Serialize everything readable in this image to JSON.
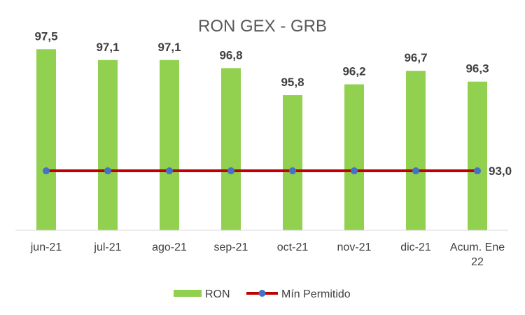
{
  "chart_data": {
    "type": "bar",
    "title": "RON GEX - GRB",
    "categories": [
      "jun-21",
      "jul-21",
      "ago-21",
      "sep-21",
      "oct-21",
      "nov-21",
      "dic-21",
      "Acum. Ene 22"
    ],
    "category_lines": [
      [
        "jun-21"
      ],
      [
        "jul-21"
      ],
      [
        "ago-21"
      ],
      [
        "sep-21"
      ],
      [
        "oct-21"
      ],
      [
        "nov-21"
      ],
      [
        "dic-21"
      ],
      [
        "Acum. Ene",
        "22"
      ]
    ],
    "series": [
      {
        "name": "RON",
        "kind": "bar",
        "color": "#92d050",
        "values": [
          97.5,
          97.1,
          97.1,
          96.8,
          95.8,
          96.2,
          96.7,
          96.3
        ],
        "labels": [
          "97,5",
          "97,1",
          "97,1",
          "96,8",
          "95,8",
          "96,2",
          "96,7",
          "96,3"
        ]
      },
      {
        "name": "Mín Permitido",
        "kind": "line",
        "color": "#c00000",
        "marker_color": "#4472c4",
        "values": [
          93.0,
          93.0,
          93.0,
          93.0,
          93.0,
          93.0,
          93.0,
          93.0
        ],
        "end_label": "93,0"
      }
    ],
    "ylim": [
      90.8,
      98.0
    ],
    "grid": false,
    "legend_position": "bottom"
  }
}
